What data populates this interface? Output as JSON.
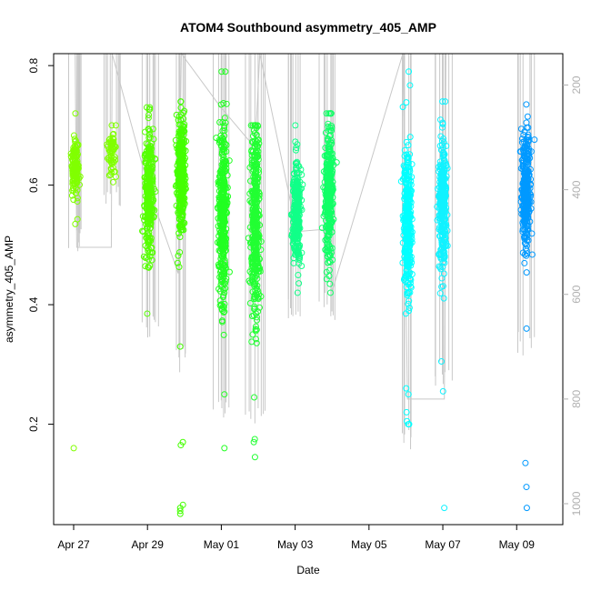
{
  "chart_data": {
    "type": "scatter",
    "title": "ATOM4 Southbound asymmetry_405_AMP",
    "xlabel": "Date",
    "ylabel": "asymmetry_405_AMP",
    "xlim": [
      "2023-04-26T11:00",
      "2023-05-10T06:00"
    ],
    "ylim": [
      0.032,
      0.82
    ],
    "x_ticks": [
      {
        "label": "Apr 27",
        "date": "2023-04-27"
      },
      {
        "label": "Apr 29",
        "date": "2023-04-29"
      },
      {
        "label": "May 01",
        "date": "2023-05-01"
      },
      {
        "label": "May 03",
        "date": "2023-05-03"
      },
      {
        "label": "May 05",
        "date": "2023-05-05"
      },
      {
        "label": "May 07",
        "date": "2023-05-07"
      },
      {
        "label": "May 09",
        "date": "2023-05-09"
      }
    ],
    "y_ticks": [
      0.2,
      0.4,
      0.6,
      0.8
    ],
    "secondary_y": {
      "color": "#b0b0b0",
      "range": [
        1040,
        140
      ],
      "reversed": true,
      "ticks": [
        200,
        400,
        600,
        800,
        1000
      ]
    },
    "grid": false,
    "marker": "open-circle",
    "clusters": [
      {
        "time": "2023-04-27T01:00",
        "color": "#80ff00",
        "mean": 0.63,
        "spread": 0.025,
        "min": 0.535,
        "max": 0.72,
        "n": 140,
        "outliers": [
          0.16
        ]
      },
      {
        "time": "2023-04-28T00:50",
        "color": "#80ff00",
        "mean": 0.655,
        "spread": 0.016,
        "min": 0.605,
        "max": 0.7,
        "n": 60,
        "outliers": []
      },
      {
        "time": "2023-04-29T01:00",
        "color": "#55ff00",
        "mean": 0.58,
        "spread": 0.055,
        "min": 0.385,
        "max": 0.73,
        "n": 320,
        "outliers": []
      },
      {
        "time": "2023-04-29T22:00",
        "color": "#44ff00",
        "mean": 0.615,
        "spread": 0.045,
        "min": 0.33,
        "max": 0.74,
        "n": 360,
        "outliers": [
          0.17,
          0.165,
          0.065,
          0.06,
          0.055,
          0.05
        ]
      },
      {
        "time": "2023-05-01T01:00",
        "color": "#22ff22",
        "mean": 0.55,
        "spread": 0.075,
        "min": 0.25,
        "max": 0.79,
        "n": 380,
        "outliers": [
          0.16
        ]
      },
      {
        "time": "2023-05-01T22:00",
        "color": "#22ff33",
        "mean": 0.54,
        "spread": 0.085,
        "min": 0.245,
        "max": 0.7,
        "n": 420,
        "outliers": [
          0.175,
          0.17,
          0.145
        ]
      },
      {
        "time": "2023-05-03T01:00",
        "color": "#11ff88",
        "mean": 0.555,
        "spread": 0.045,
        "min": 0.42,
        "max": 0.7,
        "n": 300,
        "outliers": []
      },
      {
        "time": "2023-05-03T22:00",
        "color": "#11ff66",
        "mean": 0.59,
        "spread": 0.055,
        "min": 0.42,
        "max": 0.72,
        "n": 320,
        "outliers": []
      },
      {
        "time": "2023-05-06T01:00",
        "color": "#00ffff",
        "mean": 0.54,
        "spread": 0.06,
        "min": 0.2,
        "max": 0.79,
        "n": 340,
        "outliers": [
          0.26,
          0.25,
          0.22,
          0.205,
          0.2
        ]
      },
      {
        "time": "2023-05-07T00:00",
        "color": "#11f2ff",
        "mean": 0.56,
        "spread": 0.055,
        "min": 0.305,
        "max": 0.74,
        "n": 300,
        "outliers": [
          0.255,
          0.06
        ]
      },
      {
        "time": "2023-05-09T06:00",
        "color": "#0099ff",
        "mean": 0.59,
        "spread": 0.045,
        "min": 0.36,
        "max": 0.735,
        "n": 340,
        "outliers": [
          0.135,
          0.095,
          0.06
        ]
      }
    ],
    "secondary_line": {
      "color": "#c8c8c8",
      "points": [
        [
          "2023-04-27T01:00",
          140
        ],
        [
          "2023-04-27T02:00",
          510
        ],
        [
          "2023-04-28T00:30",
          510
        ],
        [
          "2023-04-28T01:00",
          140
        ],
        [
          "2023-04-29T01:00",
          400
        ],
        [
          "2023-04-29T20:00",
          560
        ],
        [
          "2023-04-29T22:00",
          140
        ],
        [
          "2023-04-30T23:00",
          240
        ],
        [
          "2023-05-01T22:00",
          320
        ],
        [
          "2023-05-02T01:00",
          140
        ],
        [
          "2023-05-03T01:00",
          480
        ],
        [
          "2023-05-03T22:00",
          475
        ],
        [
          "2023-05-04T00:00",
          595
        ],
        [
          "2023-05-05T22:00",
          140
        ],
        [
          "2023-05-06T01:00",
          800
        ],
        [
          "2023-05-07T01:00",
          800
        ],
        [
          "2023-05-07T02:00",
          140
        ],
        [
          "2023-05-09T06:00",
          140
        ]
      ]
    }
  }
}
